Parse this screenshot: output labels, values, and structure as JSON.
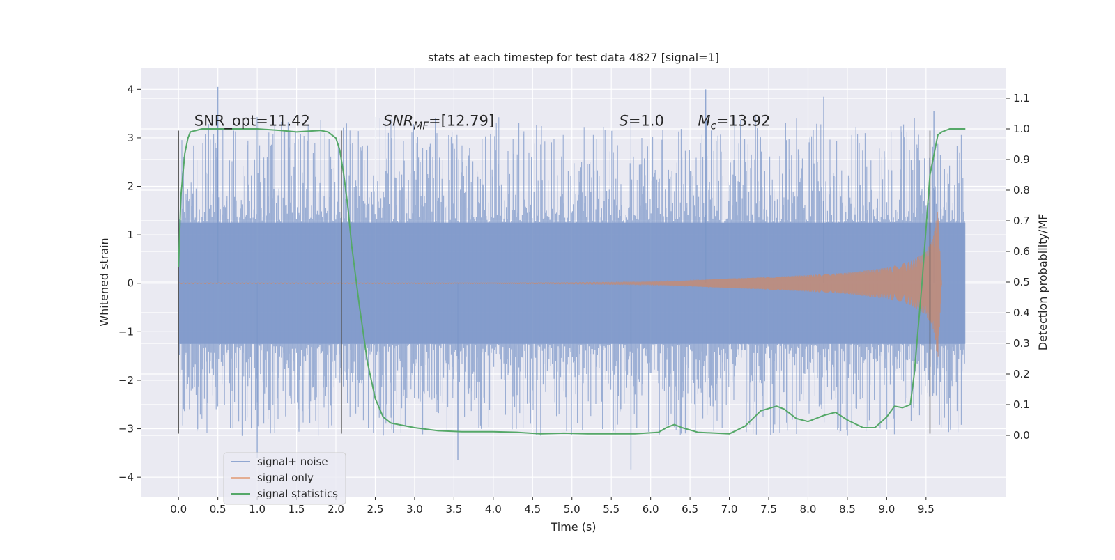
{
  "chart_data": {
    "type": "line",
    "title": "stats at each timestep for test data 4827 [signal=1]",
    "xlabel": "Time (s)",
    "ylabel": "Whitened strain",
    "y2label": "Detection probability/MF",
    "xlim": [
      -0.48,
      10.52
    ],
    "ylim": [
      -4.4,
      4.45
    ],
    "y2lim": [
      -0.2,
      1.2
    ],
    "x_ticks": [
      0.0,
      0.5,
      1.0,
      1.5,
      2.0,
      2.5,
      3.0,
      3.5,
      4.0,
      4.5,
      5.0,
      5.5,
      6.0,
      6.5,
      7.0,
      7.5,
      8.0,
      8.5,
      9.0,
      9.5
    ],
    "x_tick_labels": [
      "0.0",
      "0.5",
      "1.0",
      "1.5",
      "2.0",
      "2.5",
      "3.0",
      "3.5",
      "4.0",
      "4.5",
      "5.0",
      "5.5",
      "6.0",
      "6.5",
      "7.0",
      "7.5",
      "8.0",
      "8.5",
      "9.0",
      "9.5"
    ],
    "y_ticks": [
      4,
      3,
      2,
      1,
      0,
      -1,
      -2,
      -3,
      -4
    ],
    "y_tick_labels": [
      "4",
      "3",
      "2",
      "1",
      "0",
      "−1",
      "−2",
      "−3",
      "−4"
    ],
    "y2_ticks": [
      1.1,
      1.0,
      0.9,
      0.8,
      0.7,
      0.6,
      0.5,
      0.4,
      0.3,
      0.2,
      0.1,
      0.0
    ],
    "y2_tick_labels": [
      "1.1",
      "1.0",
      "0.9",
      "0.8",
      "0.7",
      "0.6",
      "0.5",
      "0.4",
      "0.3",
      "0.2",
      "0.1",
      "0.0"
    ],
    "grid": true,
    "legend": {
      "position": "lower-left",
      "entries": [
        "signal+ noise",
        "signal only",
        "signal statistics"
      ]
    },
    "colors": {
      "noise": "#7b96c8",
      "signal": "#dd8452",
      "stats": "#55a868",
      "markers": "#555555",
      "background": "#eaeaf2",
      "grid": "#ffffff"
    },
    "annotations": [
      {
        "text": "SNR_opt=11.42",
        "x": 0.2,
        "y": 3.25
      },
      {
        "text": "SNR_MF=[12.79]",
        "x": 2.6,
        "y": 3.25
      },
      {
        "text": "S=1.0",
        "x": 5.6,
        "y": 3.25
      },
      {
        "text": "M_c=13.92",
        "x": 6.6,
        "y": 3.25
      }
    ],
    "vertical_markers": [
      {
        "x": 0.0,
        "y0": -3.1,
        "y1": 3.15
      },
      {
        "x": 2.07,
        "y0": -3.1,
        "y1": 3.15
      },
      {
        "x": 9.55,
        "y0": -3.1,
        "y1": 3.15
      }
    ],
    "series": [
      {
        "name": "signal+ noise",
        "axis": "left",
        "style": "dense-noise",
        "x_range": [
          0.0,
          10.0
        ],
        "typical_amplitude": 1.25,
        "peak_amplitude": 4.05,
        "min_value": -3.85,
        "spikes": [
          {
            "x": 0.5,
            "y": 4.05
          },
          {
            "x": 1.0,
            "y": -3.6
          },
          {
            "x": 3.55,
            "y": -3.65
          },
          {
            "x": 5.75,
            "y": -3.85
          },
          {
            "x": 6.7,
            "y": 4.0
          },
          {
            "x": 8.2,
            "y": 3.85
          },
          {
            "x": 9.6,
            "y": 3.55
          }
        ]
      },
      {
        "name": "signal only",
        "axis": "left",
        "style": "chirp",
        "x": [
          0.0,
          1.0,
          2.0,
          3.0,
          4.0,
          5.0,
          6.0,
          6.5,
          7.0,
          7.5,
          8.0,
          8.5,
          9.0,
          9.3,
          9.5,
          9.6,
          9.65,
          9.7
        ],
        "envelope": [
          0.01,
          0.01,
          0.01,
          0.01,
          0.01,
          0.015,
          0.03,
          0.06,
          0.1,
          0.13,
          0.17,
          0.22,
          0.32,
          0.45,
          0.65,
          1.0,
          1.6,
          0.0
        ]
      },
      {
        "name": "signal statistics",
        "axis": "right",
        "x": [
          0.0,
          0.03,
          0.08,
          0.12,
          0.15,
          0.3,
          0.5,
          0.8,
          1.0,
          1.3,
          1.5,
          1.8,
          1.9,
          2.0,
          2.05,
          2.1,
          2.15,
          2.2,
          2.3,
          2.4,
          2.5,
          2.6,
          2.7,
          2.8,
          3.0,
          3.3,
          3.6,
          4.0,
          4.3,
          4.6,
          4.9,
          5.2,
          5.5,
          5.8,
          6.1,
          6.2,
          6.3,
          6.4,
          6.6,
          7.0,
          7.2,
          7.4,
          7.6,
          7.7,
          7.85,
          8.0,
          8.2,
          8.35,
          8.5,
          8.7,
          8.85,
          9.0,
          9.1,
          9.2,
          9.3,
          9.35,
          9.45,
          9.55,
          9.65,
          9.7,
          9.8,
          10.0
        ],
        "y": [
          0.55,
          0.78,
          0.92,
          0.97,
          0.99,
          1.0,
          1.0,
          1.0,
          1.0,
          0.995,
          0.99,
          0.995,
          0.99,
          0.97,
          0.93,
          0.85,
          0.75,
          0.62,
          0.42,
          0.24,
          0.12,
          0.06,
          0.04,
          0.035,
          0.025,
          0.015,
          0.012,
          0.012,
          0.01,
          0.005,
          0.007,
          0.005,
          0.005,
          0.005,
          0.01,
          0.025,
          0.035,
          0.025,
          0.01,
          0.005,
          0.03,
          0.08,
          0.095,
          0.085,
          0.055,
          0.045,
          0.065,
          0.075,
          0.05,
          0.025,
          0.025,
          0.06,
          0.095,
          0.09,
          0.1,
          0.2,
          0.5,
          0.85,
          0.98,
          0.99,
          1.0,
          1.0
        ]
      }
    ]
  }
}
